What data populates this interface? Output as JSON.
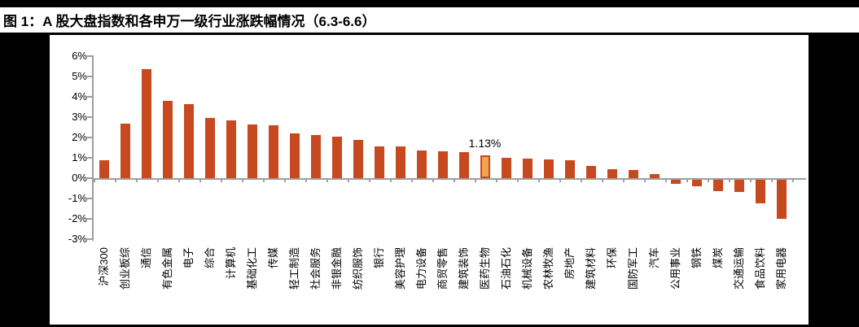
{
  "figure": {
    "title": "图 1：A 股大盘指数和各申万一级行业涨跌幅情况（6.3-6.6）"
  },
  "chart_data": {
    "type": "bar",
    "title": "图 1：A 股大盘指数和各申万一级行业涨跌幅情况（6.3-6.6）",
    "xlabel": "",
    "ylabel": "",
    "ylim": [
      -3,
      6
    ],
    "ytick_labels": [
      "6%",
      "5%",
      "4%",
      "3%",
      "2%",
      "1%",
      "0%",
      "-1%",
      "-2%",
      "-3%"
    ],
    "grid": false,
    "legend": "none",
    "categories": [
      "沪深300",
      "创业板综",
      "通信",
      "有色金属",
      "电子",
      "综合",
      "计算机",
      "基础化工",
      "传媒",
      "轻工制造",
      "社会服务",
      "非银金融",
      "纺织服饰",
      "银行",
      "美容护理",
      "电力设备",
      "商贸零售",
      "建筑装饰",
      "医药生物",
      "石油石化",
      "机械设备",
      "农林牧渔",
      "房地产",
      "建筑材料",
      "环保",
      "国防军工",
      "汽车",
      "公用事业",
      "钢铁",
      "煤炭",
      "交通运输",
      "食品饮料",
      "家用电器"
    ],
    "values": [
      0.9,
      2.68,
      5.35,
      3.8,
      3.65,
      2.95,
      2.85,
      2.65,
      2.6,
      2.22,
      2.13,
      2.05,
      1.9,
      1.58,
      1.56,
      1.38,
      1.33,
      1.28,
      1.13,
      1.02,
      0.95,
      0.93,
      0.88,
      0.62,
      0.46,
      0.4,
      0.2,
      -0.2,
      -0.3,
      -0.57,
      -0.6,
      -1.15,
      -1.9
    ],
    "highlight": {
      "category": "医药生物",
      "index": 18,
      "data_label": "1.13%"
    },
    "colors": {
      "bar": "#C7491F",
      "highlight_fill": "#F5A24D",
      "highlight_border": "#C7491F",
      "axis": "#9E9E9E",
      "panel_background": "#FFFFFF",
      "page_background": "#000000",
      "text": "#000000"
    }
  }
}
